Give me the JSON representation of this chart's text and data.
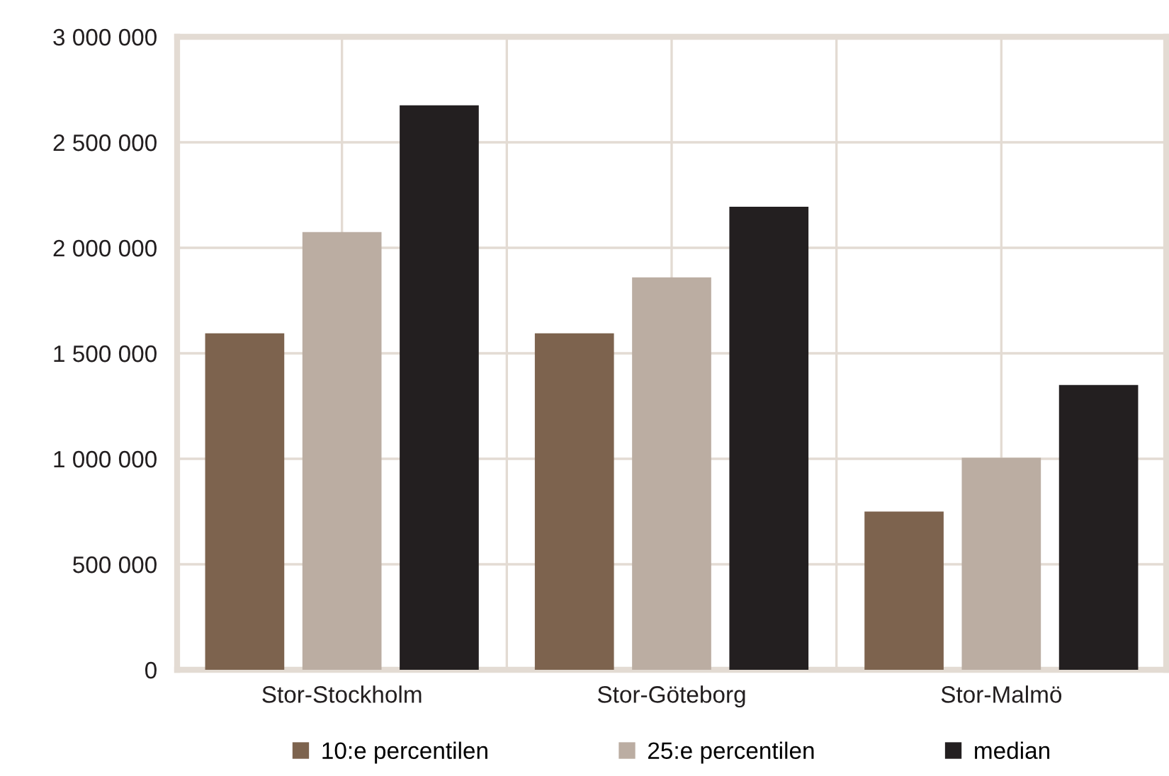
{
  "chart_data": {
    "type": "bar",
    "categories": [
      "Stor-Stockholm",
      "Stor-Göteborg",
      "Stor-Malmö"
    ],
    "series": [
      {
        "name": "10:e percentilen",
        "color": "#7d634e",
        "values": [
          1595000,
          1595000,
          750000
        ]
      },
      {
        "name": "25:e percentilen",
        "color": "#bbada2",
        "values": [
          2075000,
          1860000,
          1005000
        ]
      },
      {
        "name": "median",
        "color": "#231f20",
        "values": [
          2675000,
          2195000,
          1350000
        ]
      }
    ],
    "ylim": [
      0,
      3000000
    ],
    "yticks": [
      {
        "value": 0,
        "label": "0"
      },
      {
        "value": 500000,
        "label": "500 000"
      },
      {
        "value": 1000000,
        "label": "1 000 000"
      },
      {
        "value": 1500000,
        "label": "1 500 000"
      },
      {
        "value": 2000000,
        "label": "2 000 000"
      },
      {
        "value": 2500000,
        "label": "2 500 000"
      },
      {
        "value": 3000000,
        "label": "3 000 000"
      }
    ],
    "grid": true,
    "legend": "bottom"
  }
}
